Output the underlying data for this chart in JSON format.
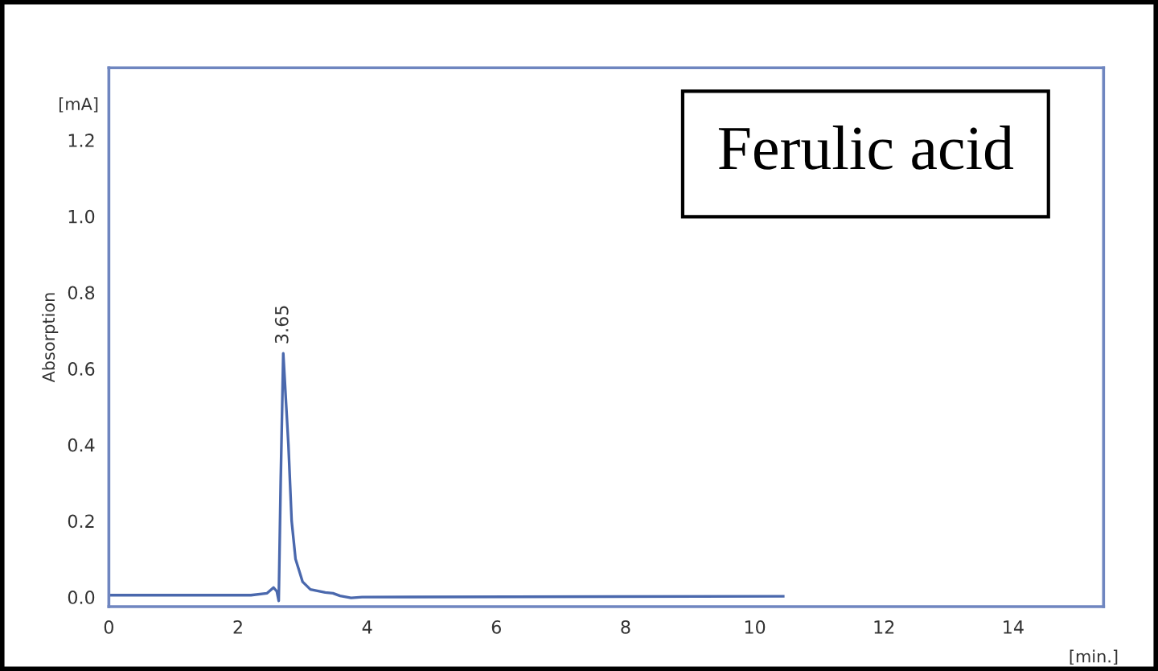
{
  "chart_data": {
    "type": "line",
    "xlabel": "[min.]",
    "ylabel": "Absorption",
    "annotations": [
      "[mA]",
      "Ferulic acid",
      {
        "text": "3.65",
        "x": 2.7,
        "y": 0.64
      }
    ],
    "series": [
      {
        "color": "#4a68ad",
        "x": [
          0,
          2.2,
          2.45,
          2.55,
          2.6,
          2.63,
          2.66,
          2.7,
          2.78,
          2.83,
          2.89,
          3.0,
          3.12,
          3.35,
          3.47,
          3.58,
          3.75,
          3.92,
          10.44
        ],
        "values": [
          0.005,
          0.005,
          0.01,
          0.025,
          0.015,
          -0.01,
          0.3,
          0.64,
          0.4,
          0.2,
          0.1,
          0.04,
          0.02,
          0.012,
          0.01,
          0.003,
          -0.002,
          0.0,
          0.002
        ]
      }
    ],
    "xlim": [
      0,
      15.4
    ],
    "ylim": [
      -0.025,
      1.39
    ],
    "xticks": [
      0,
      2,
      4,
      6,
      8,
      10,
      12,
      14
    ],
    "yticks": [
      {
        "value": 0,
        "label": "0.0"
      },
      {
        "value": 0.2,
        "label": "0.2"
      },
      {
        "value": 0.4,
        "label": "0.4"
      },
      {
        "value": 0.6,
        "label": "0.6"
      },
      {
        "value": 0.8,
        "label": "0.8"
      },
      {
        "value": 1.0,
        "label": "1.0"
      },
      {
        "value": 1.2,
        "label": "1.2"
      }
    ],
    "grid": false,
    "legend": false
  }
}
